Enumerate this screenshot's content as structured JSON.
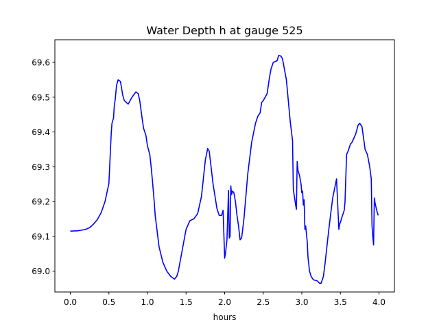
{
  "chart_data": {
    "type": "line",
    "title": "Water Depth h at gauge 525",
    "xlabel": "hours",
    "ylabel": "",
    "xlim": [
      -0.2,
      4.2
    ],
    "ylim": [
      68.94,
      69.665
    ],
    "xticks": [
      "0.0",
      "0.5",
      "1.0",
      "1.5",
      "2.0",
      "2.5",
      "3.0",
      "3.5",
      "4.0"
    ],
    "yticks": [
      "69.0",
      "69.1",
      "69.2",
      "69.3",
      "69.4",
      "69.5",
      "69.6"
    ],
    "grid": false,
    "line_color": "#0000ff",
    "series": [
      {
        "x": [
          0.0,
          0.1,
          0.2,
          0.25,
          0.3,
          0.35,
          0.4,
          0.45,
          0.5,
          0.53,
          0.54,
          0.56,
          0.57,
          0.58,
          0.6,
          0.62,
          0.65,
          0.68,
          0.7,
          0.75,
          0.8,
          0.85,
          0.88,
          0.9,
          0.93,
          0.95,
          0.98,
          1.0,
          1.03,
          1.05,
          1.08,
          1.1,
          1.15,
          1.2,
          1.25,
          1.3,
          1.35,
          1.38,
          1.4,
          1.45,
          1.5,
          1.55,
          1.6,
          1.65,
          1.7,
          1.75,
          1.78,
          1.8,
          1.85,
          1.9,
          1.93,
          1.96,
          1.98,
          2.0,
          2.01,
          2.03,
          2.05,
          2.06,
          2.07,
          2.08,
          2.09,
          2.1,
          2.11,
          2.12,
          2.14,
          2.16,
          2.18,
          2.2,
          2.22,
          2.25,
          2.3,
          2.35,
          2.4,
          2.43,
          2.46,
          2.48,
          2.5,
          2.55,
          2.58,
          2.6,
          2.63,
          2.65,
          2.68,
          2.7,
          2.73,
          2.75,
          2.8,
          2.85,
          2.88,
          2.89,
          2.92,
          2.93,
          2.94,
          2.95,
          2.97,
          2.99,
          3.0,
          3.01,
          3.02,
          3.03,
          3.04,
          3.05,
          3.07,
          3.08,
          3.1,
          3.12,
          3.15,
          3.2,
          3.23,
          3.25,
          3.28,
          3.3,
          3.35,
          3.38,
          3.4,
          3.45,
          3.48,
          3.49,
          3.5,
          3.52,
          3.55,
          3.56,
          3.58,
          3.6,
          3.63,
          3.65,
          3.7,
          3.73,
          3.75,
          3.78,
          3.82,
          3.85,
          3.88,
          3.9,
          3.91,
          3.92,
          3.93,
          3.94,
          3.95,
          3.97,
          3.99
        ],
        "values": [
          69.115,
          69.116,
          69.12,
          69.125,
          69.135,
          69.148,
          69.168,
          69.2,
          69.252,
          69.395,
          69.425,
          69.44,
          69.475,
          69.49,
          69.535,
          69.55,
          69.545,
          69.505,
          69.49,
          69.48,
          69.5,
          69.515,
          69.51,
          69.49,
          69.44,
          69.41,
          69.39,
          69.36,
          69.335,
          69.295,
          69.22,
          69.16,
          69.07,
          69.025,
          69.0,
          68.985,
          68.977,
          68.985,
          69.0,
          69.06,
          69.12,
          69.145,
          69.15,
          69.165,
          69.215,
          69.32,
          69.352,
          69.345,
          69.25,
          69.18,
          69.16,
          69.16,
          69.175,
          69.037,
          69.05,
          69.09,
          69.232,
          69.095,
          69.1,
          69.245,
          69.22,
          69.23,
          69.228,
          69.225,
          69.2,
          69.16,
          69.13,
          69.09,
          69.095,
          69.15,
          69.28,
          69.37,
          69.425,
          69.445,
          69.455,
          69.485,
          69.49,
          69.51,
          69.555,
          69.58,
          69.6,
          69.602,
          69.605,
          69.62,
          69.618,
          69.61,
          69.55,
          69.43,
          69.375,
          69.235,
          69.19,
          69.178,
          69.315,
          69.29,
          69.275,
          69.25,
          69.225,
          69.23,
          69.19,
          69.205,
          69.12,
          69.13,
          69.085,
          69.04,
          69.0,
          68.985,
          68.975,
          68.972,
          68.965,
          68.965,
          68.985,
          69.02,
          69.12,
          69.175,
          69.21,
          69.265,
          69.12,
          69.135,
          69.14,
          69.155,
          69.175,
          69.2,
          69.335,
          69.345,
          69.365,
          69.37,
          69.395,
          69.42,
          69.425,
          69.415,
          69.35,
          69.335,
          69.3,
          69.265,
          69.13,
          69.1,
          69.075,
          69.21,
          69.195,
          69.175,
          69.16
        ]
      }
    ]
  }
}
